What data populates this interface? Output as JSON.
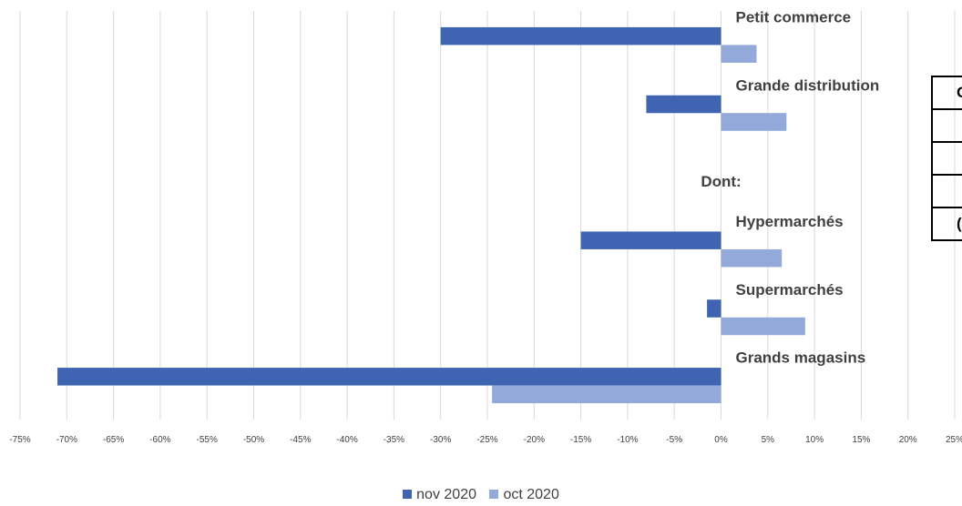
{
  "chart_data": {
    "type": "bar",
    "orientation": "horizontal",
    "categories": [
      "Petit commerce",
      "Grande distribution",
      "Dont:",
      "Hypermarchés",
      "Supermarchés",
      "Grands magasins"
    ],
    "series": [
      {
        "name": "nov 2020",
        "color": "#3F64B1",
        "values": [
          -30,
          -8,
          null,
          -15,
          -1.5,
          -71
        ]
      },
      {
        "name": "oct 2020",
        "color": "#93A9DA",
        "values": [
          3.8,
          7,
          null,
          6.5,
          9,
          -24.5
        ]
      }
    ],
    "xlim": [
      -75,
      25
    ],
    "x_ticks": [
      "-75%",
      "-70%",
      "-65%",
      "-60%",
      "-55%",
      "-50%",
      "-45%",
      "-40%",
      "-35%",
      "-30%",
      "-25%",
      "-20%",
      "-15%",
      "-10%",
      "-5%",
      "0%",
      "5%",
      "10%",
      "15%",
      "20%",
      "25%"
    ],
    "grid": "vertical",
    "legend_position": "bottom"
  },
  "side_table": {
    "header": "Gr",
    "rows": [
      "",
      "",
      "",
      "("
    ]
  }
}
